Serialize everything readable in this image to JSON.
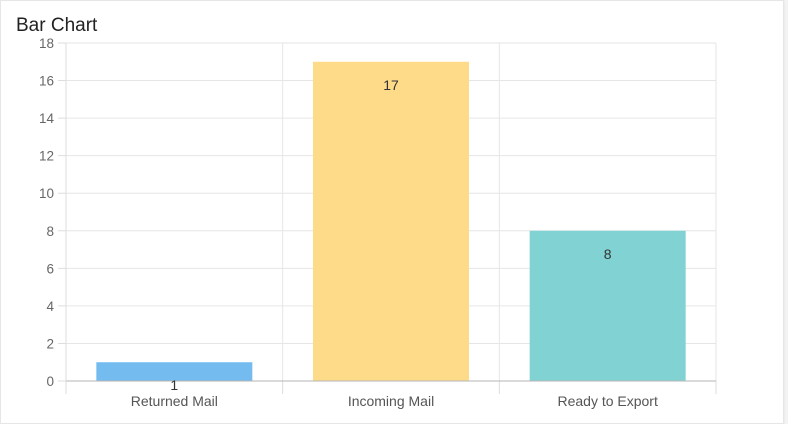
{
  "card": {
    "title": "Bar Chart"
  },
  "chart_data": {
    "type": "bar",
    "title": "Bar Chart",
    "categories": [
      "Returned Mail",
      "Incoming Mail",
      "Ready to Export"
    ],
    "values": [
      1,
      17,
      8
    ],
    "colors": [
      "#74bcf0",
      "#fedb88",
      "#81d2d3"
    ],
    "ylim": [
      0,
      18
    ],
    "yticks": [
      0,
      2,
      4,
      6,
      8,
      10,
      12,
      14,
      16,
      18
    ],
    "grid": true,
    "data_labels": true
  }
}
